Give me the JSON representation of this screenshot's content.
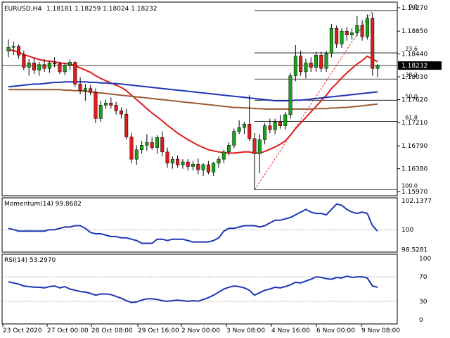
{
  "chart_data": [
    {
      "type": "candlestick",
      "title": "EURUSD,H4",
      "ohlc_label": "1.18181 1.18259 1.18024 1.18232",
      "ylim": [
        1.1597,
        1.1927
      ],
      "yticks": [
        "1.19270",
        "1.18850",
        "1.18440",
        "1.18030",
        "1.17620",
        "1.17210",
        "1.16790",
        "1.16380",
        "1.15970"
      ],
      "current_price": "1.18232",
      "xticks": [
        "23 Oct 2020",
        "27 Oct 00:00",
        "28 Oct 08:00",
        "29 Oct 16:00",
        "2 Nov 00:00",
        "3 Nov 08:00",
        "4 Nov 16:00",
        "6 Nov 00:00",
        "9 Nov 08:00"
      ],
      "fibonacci": {
        "levels": [
          {
            "label": "0.0",
            "price": 1.1922
          },
          {
            "label": "23.6",
            "price": 1.1846
          },
          {
            "label": "38.2",
            "price": 1.1799
          },
          {
            "label": "50.0",
            "price": 1.1761
          },
          {
            "label": "61.8",
            "price": 1.1723
          },
          {
            "label": "100.0",
            "price": 1.16
          }
        ]
      },
      "candles": [
        {
          "o": 1.1849,
          "h": 1.187,
          "l": 1.1838,
          "c": 1.1856
        },
        {
          "o": 1.1856,
          "h": 1.1866,
          "l": 1.1842,
          "c": 1.1858
        },
        {
          "o": 1.1858,
          "h": 1.1861,
          "l": 1.1835,
          "c": 1.1842
        },
        {
          "o": 1.1842,
          "h": 1.185,
          "l": 1.1815,
          "c": 1.182
        },
        {
          "o": 1.182,
          "h": 1.1835,
          "l": 1.1805,
          "c": 1.1828
        },
        {
          "o": 1.1828,
          "h": 1.1838,
          "l": 1.1808,
          "c": 1.1815
        },
        {
          "o": 1.1815,
          "h": 1.183,
          "l": 1.1805,
          "c": 1.1825
        },
        {
          "o": 1.1825,
          "h": 1.1835,
          "l": 1.1812,
          "c": 1.1818
        },
        {
          "o": 1.1818,
          "h": 1.1832,
          "l": 1.181,
          "c": 1.1828
        },
        {
          "o": 1.1828,
          "h": 1.1838,
          "l": 1.182,
          "c": 1.1826
        },
        {
          "o": 1.1826,
          "h": 1.183,
          "l": 1.1808,
          "c": 1.1812
        },
        {
          "o": 1.1812,
          "h": 1.1828,
          "l": 1.1806,
          "c": 1.1824
        },
        {
          "o": 1.1824,
          "h": 1.1834,
          "l": 1.1815,
          "c": 1.1829
        },
        {
          "o": 1.1829,
          "h": 1.1831,
          "l": 1.1785,
          "c": 1.179
        },
        {
          "o": 1.179,
          "h": 1.1802,
          "l": 1.1772,
          "c": 1.1778
        },
        {
          "o": 1.1778,
          "h": 1.179,
          "l": 1.176,
          "c": 1.1782
        },
        {
          "o": 1.1782,
          "h": 1.1788,
          "l": 1.177,
          "c": 1.1775
        },
        {
          "o": 1.1775,
          "h": 1.1782,
          "l": 1.172,
          "c": 1.1728
        },
        {
          "o": 1.1728,
          "h": 1.176,
          "l": 1.1722,
          "c": 1.1752
        },
        {
          "o": 1.1752,
          "h": 1.1762,
          "l": 1.1745,
          "c": 1.1756
        },
        {
          "o": 1.1756,
          "h": 1.1766,
          "l": 1.1746,
          "c": 1.1752
        },
        {
          "o": 1.1752,
          "h": 1.1758,
          "l": 1.1735,
          "c": 1.1742
        },
        {
          "o": 1.1742,
          "h": 1.1748,
          "l": 1.1728,
          "c": 1.1736
        },
        {
          "o": 1.1736,
          "h": 1.1745,
          "l": 1.169,
          "c": 1.1695
        },
        {
          "o": 1.1695,
          "h": 1.1702,
          "l": 1.1648,
          "c": 1.1655
        },
        {
          "o": 1.1655,
          "h": 1.168,
          "l": 1.1645,
          "c": 1.1672
        },
        {
          "o": 1.1672,
          "h": 1.1688,
          "l": 1.1665,
          "c": 1.168
        },
        {
          "o": 1.168,
          "h": 1.17,
          "l": 1.167,
          "c": 1.1685
        },
        {
          "o": 1.1685,
          "h": 1.1695,
          "l": 1.1672,
          "c": 1.1676
        },
        {
          "o": 1.1676,
          "h": 1.1698,
          "l": 1.1665,
          "c": 1.1694
        },
        {
          "o": 1.1694,
          "h": 1.1705,
          "l": 1.166,
          "c": 1.1668
        },
        {
          "o": 1.1668,
          "h": 1.1676,
          "l": 1.164,
          "c": 1.1648
        },
        {
          "o": 1.1648,
          "h": 1.166,
          "l": 1.1638,
          "c": 1.1655
        },
        {
          "o": 1.1655,
          "h": 1.1662,
          "l": 1.164,
          "c": 1.1645
        },
        {
          "o": 1.1645,
          "h": 1.1655,
          "l": 1.1638,
          "c": 1.165
        },
        {
          "o": 1.165,
          "h": 1.1655,
          "l": 1.1635,
          "c": 1.1642
        },
        {
          "o": 1.1642,
          "h": 1.1652,
          "l": 1.1635,
          "c": 1.1646
        },
        {
          "o": 1.1646,
          "h": 1.1656,
          "l": 1.1628,
          "c": 1.1636
        },
        {
          "o": 1.1636,
          "h": 1.1648,
          "l": 1.1625,
          "c": 1.1645
        },
        {
          "o": 1.1645,
          "h": 1.1652,
          "l": 1.1628,
          "c": 1.1632
        },
        {
          "o": 1.1632,
          "h": 1.165,
          "l": 1.1625,
          "c": 1.1648
        },
        {
          "o": 1.1648,
          "h": 1.166,
          "l": 1.164,
          "c": 1.1655
        },
        {
          "o": 1.1655,
          "h": 1.1672,
          "l": 1.1648,
          "c": 1.1668
        },
        {
          "o": 1.1668,
          "h": 1.1685,
          "l": 1.1662,
          "c": 1.168
        },
        {
          "o": 1.168,
          "h": 1.171,
          "l": 1.1675,
          "c": 1.1705
        },
        {
          "o": 1.1705,
          "h": 1.1725,
          "l": 1.17,
          "c": 1.1712
        },
        {
          "o": 1.1712,
          "h": 1.1722,
          "l": 1.17,
          "c": 1.1718
        },
        {
          "o": 1.1718,
          "h": 1.177,
          "l": 1.1688,
          "c": 1.1692
        },
        {
          "o": 1.1692,
          "h": 1.1702,
          "l": 1.16,
          "c": 1.1665
        },
        {
          "o": 1.1665,
          "h": 1.17,
          "l": 1.163,
          "c": 1.169
        },
        {
          "o": 1.169,
          "h": 1.172,
          "l": 1.1682,
          "c": 1.1715
        },
        {
          "o": 1.1715,
          "h": 1.1728,
          "l": 1.1702,
          "c": 1.1708
        },
        {
          "o": 1.1708,
          "h": 1.1728,
          "l": 1.17,
          "c": 1.1722
        },
        {
          "o": 1.1722,
          "h": 1.1735,
          "l": 1.171,
          "c": 1.1715
        },
        {
          "o": 1.1715,
          "h": 1.174,
          "l": 1.1708,
          "c": 1.1735
        },
        {
          "o": 1.1735,
          "h": 1.181,
          "l": 1.1728,
          "c": 1.1805
        },
        {
          "o": 1.1805,
          "h": 1.186,
          "l": 1.1795,
          "c": 1.184
        },
        {
          "o": 1.184,
          "h": 1.185,
          "l": 1.1805,
          "c": 1.1812
        },
        {
          "o": 1.1812,
          "h": 1.1835,
          "l": 1.18,
          "c": 1.1828
        },
        {
          "o": 1.1828,
          "h": 1.1838,
          "l": 1.1812,
          "c": 1.182
        },
        {
          "o": 1.182,
          "h": 1.1848,
          "l": 1.1812,
          "c": 1.1842
        },
        {
          "o": 1.1842,
          "h": 1.1848,
          "l": 1.1812,
          "c": 1.1818
        },
        {
          "o": 1.1818,
          "h": 1.185,
          "l": 1.1812,
          "c": 1.1845
        },
        {
          "o": 1.1845,
          "h": 1.1898,
          "l": 1.1838,
          "c": 1.189
        },
        {
          "o": 1.189,
          "h": 1.1895,
          "l": 1.1855,
          "c": 1.1862
        },
        {
          "o": 1.1862,
          "h": 1.189,
          "l": 1.1855,
          "c": 1.1885
        },
        {
          "o": 1.1885,
          "h": 1.1892,
          "l": 1.1868,
          "c": 1.1878
        },
        {
          "o": 1.1878,
          "h": 1.189,
          "l": 1.187,
          "c": 1.1882
        },
        {
          "o": 1.1882,
          "h": 1.1912,
          "l": 1.1876,
          "c": 1.1895
        },
        {
          "o": 1.1895,
          "h": 1.1905,
          "l": 1.1868,
          "c": 1.1875
        },
        {
          "o": 1.1875,
          "h": 1.1915,
          "l": 1.187,
          "c": 1.1908
        },
        {
          "o": 1.1908,
          "h": 1.1918,
          "l": 1.1805,
          "c": 1.1818
        },
        {
          "o": 1.1818,
          "h": 1.1826,
          "l": 1.1802,
          "c": 1.1823
        }
      ],
      "moving_averages": [
        {
          "name": "MA red",
          "color": "#e31a1c",
          "values": [
            1.1852,
            1.185,
            1.1847,
            1.1843,
            1.184,
            1.1837,
            1.1834,
            1.1832,
            1.1831,
            1.183,
            1.1828,
            1.1827,
            1.1826,
            1.1823,
            1.1819,
            1.1815,
            1.1811,
            1.1805,
            1.18,
            1.1796,
            1.1792,
            1.1788,
            1.1784,
            1.1778,
            1.177,
            1.1762,
            1.1754,
            1.1746,
            1.1738,
            1.1731,
            1.1724,
            1.1716,
            1.1709,
            1.1702,
            1.1696,
            1.169,
            1.1685,
            1.168,
            1.1676,
            1.1672,
            1.167,
            1.1668,
            1.1667,
            1.1666,
            1.1666,
            1.1667,
            1.1668,
            1.1668,
            1.1666,
            1.1666,
            1.1669,
            1.1673,
            1.1677,
            1.1682,
            1.1688,
            1.1698,
            1.171,
            1.172,
            1.173,
            1.174,
            1.175,
            1.176,
            1.177,
            1.1782,
            1.1791,
            1.1801,
            1.181,
            1.1818,
            1.1826,
            1.1832,
            1.184,
            1.1835,
            1.183
          ]
        },
        {
          "name": "MA blue",
          "color": "#1f36b4",
          "values": [
            1.1785,
            1.1786,
            1.1787,
            1.1788,
            1.1789,
            1.179,
            1.179,
            1.1791,
            1.1792,
            1.1793,
            1.1793,
            1.1794,
            1.1794,
            1.1794,
            1.1794,
            1.1794,
            1.1793,
            1.1793,
            1.1792,
            1.1792,
            1.1791,
            1.1791,
            1.179,
            1.1789,
            1.1788,
            1.1787,
            1.1786,
            1.1785,
            1.1784,
            1.1783,
            1.1782,
            1.1781,
            1.178,
            1.1779,
            1.1778,
            1.1777,
            1.1776,
            1.1775,
            1.1774,
            1.1773,
            1.1772,
            1.1771,
            1.177,
            1.1769,
            1.1768,
            1.1767,
            1.1766,
            1.1765,
            1.1764,
            1.1763,
            1.1762,
            1.1761,
            1.176,
            1.176,
            1.176,
            1.176,
            1.1761,
            1.1761,
            1.1762,
            1.1763,
            1.1764,
            1.1765,
            1.1766,
            1.1767,
            1.1768,
            1.1769,
            1.177,
            1.1771,
            1.1772,
            1.1773,
            1.1774,
            1.1775,
            1.1776
          ]
        },
        {
          "name": "MA brown",
          "color": "#9c5b36",
          "values": [
            1.178,
            1.178,
            1.178,
            1.178,
            1.178,
            1.178,
            1.178,
            1.178,
            1.178,
            1.178,
            1.178,
            1.1779,
            1.1779,
            1.1778,
            1.1778,
            1.1777,
            1.1776,
            1.1775,
            1.1774,
            1.1773,
            1.1772,
            1.1771,
            1.177,
            1.1769,
            1.1768,
            1.1767,
            1.1766,
            1.1765,
            1.1764,
            1.1763,
            1.1762,
            1.1761,
            1.176,
            1.1759,
            1.1758,
            1.1757,
            1.1756,
            1.1755,
            1.1754,
            1.1753,
            1.1752,
            1.1751,
            1.175,
            1.1749,
            1.1748,
            1.1748,
            1.1747,
            1.1747,
            1.1746,
            1.1746,
            1.1745,
            1.1745,
            1.1745,
            1.1745,
            1.1745,
            1.1745,
            1.1745,
            1.1745,
            1.1745,
            1.1745,
            1.1746,
            1.1746,
            1.1746,
            1.1747,
            1.1747,
            1.1748,
            1.1748,
            1.1749,
            1.175,
            1.1751,
            1.1752,
            1.1753,
            1.1754
          ]
        }
      ],
      "colors": {
        "bull": "#18a318",
        "bear": "#d91c1c",
        "wick": "#000000",
        "grid": "#000000",
        "fib": "#000000",
        "fib_trend": "#e31a1c"
      }
    },
    {
      "type": "line",
      "title": "Momentum(14) 99.8682",
      "ylim": [
        98.35,
        102.35
      ],
      "yticks": [
        "102.1377",
        "100",
        "98.5281"
      ],
      "reference_line": 100,
      "series": [
        {
          "color": "#1f36b4",
          "values": [
            100.1,
            100.0,
            99.9,
            99.9,
            99.9,
            99.9,
            99.9,
            99.9,
            100.0,
            100.0,
            100.1,
            100.2,
            100.2,
            100.3,
            100.3,
            100.1,
            99.8,
            99.7,
            99.7,
            99.6,
            99.5,
            99.5,
            99.4,
            99.4,
            99.3,
            99.2,
            99.0,
            99.0,
            99.0,
            99.3,
            99.3,
            99.2,
            99.3,
            99.3,
            99.3,
            99.2,
            99.1,
            99.1,
            99.1,
            99.1,
            99.2,
            99.4,
            99.9,
            100.1,
            100.1,
            100.2,
            100.3,
            100.3,
            100.3,
            100.2,
            100.3,
            100.5,
            100.7,
            100.7,
            100.8,
            100.9,
            101.1,
            101.3,
            101.5,
            101.3,
            101.2,
            101.2,
            101.1,
            101.5,
            101.9,
            101.8,
            101.5,
            101.3,
            101.2,
            101.3,
            101.2,
            100.3,
            99.9
          ]
        }
      ]
    },
    {
      "type": "line",
      "title": "RSI(14) 53.2970",
      "ylim": [
        0,
        100
      ],
      "yticks": [
        "100",
        "70",
        "30",
        "0"
      ],
      "levels": [
        70,
        30
      ],
      "series": [
        {
          "color": "#1f36b4",
          "values": [
            62,
            60,
            58,
            55,
            54,
            53,
            53,
            52,
            54,
            55,
            52,
            54,
            50,
            48,
            46,
            45,
            43,
            40,
            42,
            42,
            41,
            38,
            35,
            31,
            28,
            29,
            32,
            34,
            34,
            33,
            31,
            30,
            31,
            32,
            31,
            30,
            31,
            30,
            33,
            36,
            40,
            45,
            50,
            53,
            55,
            54,
            52,
            48,
            40,
            44,
            48,
            50,
            53,
            52,
            54,
            57,
            61,
            60,
            63,
            66,
            70,
            69,
            67,
            66,
            69,
            68,
            71,
            69,
            70,
            70,
            68,
            55,
            53
          ]
        }
      ]
    }
  ]
}
